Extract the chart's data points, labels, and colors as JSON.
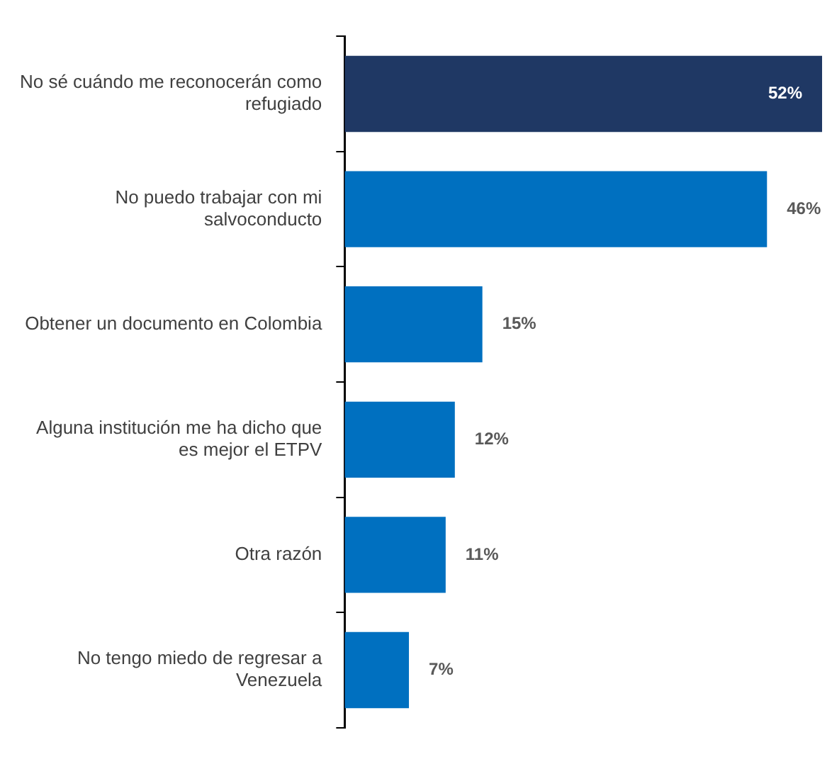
{
  "chart_data": {
    "type": "bar",
    "orientation": "horizontal",
    "categories": [
      "No sé cuándo me reconocerán como refugiado",
      "No puedo trabajar con mi salvoconducto",
      "Obtener un documento en Colombia",
      "Alguna institución me ha dicho que es mejor el ETPV",
      "Otra razón",
      "No tengo miedo de regresar a Venezuela"
    ],
    "values": [
      52,
      46,
      15,
      12,
      11,
      7
    ],
    "colors": [
      "#1f3864",
      "#0070c0",
      "#0070c0",
      "#0070c0",
      "#0070c0",
      "#0070c0"
    ],
    "value_labels": [
      "52%",
      "46%",
      "15%",
      "12%",
      "11%",
      "7%"
    ],
    "xlim": [
      0,
      52
    ],
    "tick_labels": "y",
    "legend": false
  }
}
